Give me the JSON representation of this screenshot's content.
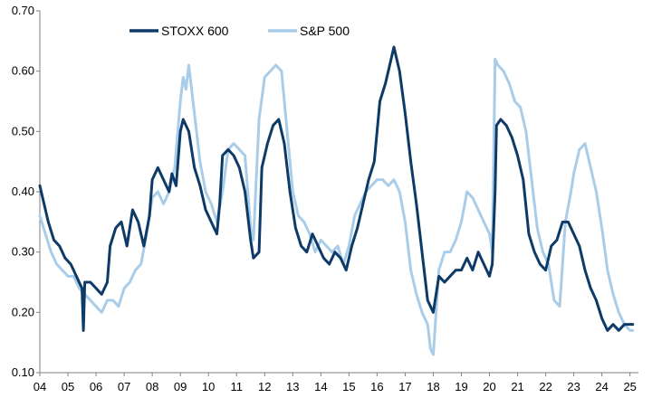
{
  "chart_data": {
    "type": "line",
    "title": "",
    "xlabel": "",
    "ylabel": "",
    "xlim": [
      2004.0,
      2025.3
    ],
    "ylim": [
      0.1,
      0.7
    ],
    "y_ticks": [
      "0.10",
      "0.20",
      "0.30",
      "0.40",
      "0.50",
      "0.60",
      "0.70"
    ],
    "x_ticks": [
      {
        "label": "04",
        "x": 2004
      },
      {
        "label": "05",
        "x": 2005
      },
      {
        "label": "06",
        "x": 2006
      },
      {
        "label": "07",
        "x": 2007
      },
      {
        "label": "08",
        "x": 2008
      },
      {
        "label": "09",
        "x": 2009
      },
      {
        "label": "10",
        "x": 2010
      },
      {
        "label": "11",
        "x": 2011
      },
      {
        "label": "12",
        "x": 2012
      },
      {
        "label": "13",
        "x": 2013
      },
      {
        "label": "14",
        "x": 2014
      },
      {
        "label": "15",
        "x": 2015
      },
      {
        "label": "16",
        "x": 2016
      },
      {
        "label": "17",
        "x": 2017
      },
      {
        "label": "18",
        "x": 2018
      },
      {
        "label": "19",
        "x": 2019
      },
      {
        "label": "20",
        "x": 2020
      },
      {
        "label": "21",
        "x": 2021
      },
      {
        "label": "22",
        "x": 2022
      },
      {
        "label": "23",
        "x": 2023
      },
      {
        "label": "24",
        "x": 2024
      },
      {
        "label": "25",
        "x": 2025
      }
    ],
    "grid": false,
    "legend_position": "top-left",
    "series": [
      {
        "name": "STOXX 600",
        "color": "#0d3a66",
        "x": [
          2004.0,
          2004.1,
          2004.3,
          2004.5,
          2004.7,
          2004.9,
          2005.1,
          2005.3,
          2005.5,
          2005.55,
          2005.6,
          2005.8,
          2006.0,
          2006.2,
          2006.4,
          2006.5,
          2006.7,
          2006.9,
          2007.1,
          2007.3,
          2007.5,
          2007.7,
          2007.9,
          2008.0,
          2008.2,
          2008.4,
          2008.6,
          2008.7,
          2008.85,
          2009.0,
          2009.1,
          2009.3,
          2009.5,
          2009.7,
          2009.9,
          2010.1,
          2010.3,
          2010.4,
          2010.5,
          2010.7,
          2010.9,
          2011.1,
          2011.3,
          2011.5,
          2011.6,
          2011.8,
          2011.9,
          2012.1,
          2012.3,
          2012.5,
          2012.7,
          2012.9,
          2013.1,
          2013.3,
          2013.5,
          2013.7,
          2013.9,
          2014.1,
          2014.3,
          2014.5,
          2014.7,
          2014.9,
          2015.1,
          2015.3,
          2015.5,
          2015.7,
          2015.9,
          2016.1,
          2016.3,
          2016.45,
          2016.6,
          2016.8,
          2017.0,
          2017.2,
          2017.4,
          2017.6,
          2017.8,
          2018.0,
          2018.2,
          2018.4,
          2018.6,
          2018.8,
          2019.0,
          2019.2,
          2019.4,
          2019.6,
          2019.8,
          2020.0,
          2020.1,
          2020.2,
          2020.25,
          2020.4,
          2020.6,
          2020.8,
          2021.0,
          2021.2,
          2021.4,
          2021.6,
          2021.8,
          2022.0,
          2022.2,
          2022.4,
          2022.6,
          2022.8,
          2023.0,
          2023.2,
          2023.4,
          2023.6,
          2023.8,
          2024.0,
          2024.2,
          2024.4,
          2024.6,
          2024.8,
          2025.0,
          2025.1
        ],
        "values": [
          0.41,
          0.39,
          0.35,
          0.32,
          0.31,
          0.29,
          0.28,
          0.26,
          0.24,
          0.17,
          0.25,
          0.25,
          0.24,
          0.23,
          0.25,
          0.31,
          0.34,
          0.35,
          0.31,
          0.37,
          0.35,
          0.31,
          0.36,
          0.42,
          0.44,
          0.42,
          0.4,
          0.43,
          0.41,
          0.5,
          0.52,
          0.5,
          0.44,
          0.41,
          0.37,
          0.35,
          0.33,
          0.38,
          0.46,
          0.47,
          0.46,
          0.44,
          0.4,
          0.32,
          0.29,
          0.3,
          0.44,
          0.48,
          0.51,
          0.52,
          0.48,
          0.4,
          0.34,
          0.31,
          0.3,
          0.33,
          0.31,
          0.29,
          0.28,
          0.3,
          0.29,
          0.27,
          0.31,
          0.34,
          0.38,
          0.42,
          0.45,
          0.55,
          0.58,
          0.61,
          0.64,
          0.6,
          0.53,
          0.45,
          0.38,
          0.3,
          0.22,
          0.2,
          0.26,
          0.25,
          0.26,
          0.27,
          0.27,
          0.29,
          0.27,
          0.3,
          0.28,
          0.26,
          0.28,
          0.4,
          0.51,
          0.52,
          0.51,
          0.49,
          0.46,
          0.42,
          0.33,
          0.3,
          0.28,
          0.27,
          0.31,
          0.32,
          0.35,
          0.35,
          0.33,
          0.31,
          0.27,
          0.24,
          0.22,
          0.19,
          0.17,
          0.18,
          0.17,
          0.18,
          0.18,
          0.18
        ]
      },
      {
        "name": "S&P 500",
        "color": "#a9cde8",
        "x": [
          2004.0,
          2004.2,
          2004.4,
          2004.6,
          2004.8,
          2005.0,
          2005.2,
          2005.4,
          2005.6,
          2005.8,
          2006.0,
          2006.2,
          2006.4,
          2006.6,
          2006.8,
          2007.0,
          2007.2,
          2007.4,
          2007.6,
          2007.8,
          2008.0,
          2008.2,
          2008.4,
          2008.6,
          2008.8,
          2009.0,
          2009.1,
          2009.2,
          2009.3,
          2009.5,
          2009.7,
          2009.9,
          2010.1,
          2010.3,
          2010.5,
          2010.7,
          2010.9,
          2011.1,
          2011.3,
          2011.5,
          2011.6,
          2011.8,
          2012.0,
          2012.2,
          2012.4,
          2012.6,
          2012.8,
          2013.0,
          2013.2,
          2013.4,
          2013.6,
          2013.8,
          2014.0,
          2014.2,
          2014.4,
          2014.6,
          2014.8,
          2015.0,
          2015.2,
          2015.4,
          2015.6,
          2015.8,
          2016.0,
          2016.2,
          2016.4,
          2016.6,
          2016.8,
          2017.0,
          2017.2,
          2017.4,
          2017.6,
          2017.8,
          2017.9,
          2018.0,
          2018.2,
          2018.4,
          2018.6,
          2018.8,
          2019.0,
          2019.2,
          2019.4,
          2019.6,
          2019.8,
          2020.0,
          2020.1,
          2020.2,
          2020.3,
          2020.5,
          2020.7,
          2020.9,
          2021.1,
          2021.3,
          2021.5,
          2021.7,
          2021.9,
          2022.1,
          2022.3,
          2022.5,
          2022.7,
          2022.9,
          2023.0,
          2023.2,
          2023.4,
          2023.6,
          2023.8,
          2024.0,
          2024.2,
          2024.4,
          2024.6,
          2024.8,
          2025.0,
          2025.1
        ],
        "values": [
          0.36,
          0.33,
          0.3,
          0.28,
          0.27,
          0.26,
          0.26,
          0.24,
          0.23,
          0.22,
          0.21,
          0.2,
          0.22,
          0.22,
          0.21,
          0.24,
          0.25,
          0.27,
          0.28,
          0.33,
          0.39,
          0.4,
          0.38,
          0.4,
          0.44,
          0.55,
          0.59,
          0.57,
          0.61,
          0.53,
          0.45,
          0.4,
          0.38,
          0.35,
          0.4,
          0.47,
          0.48,
          0.47,
          0.46,
          0.34,
          0.32,
          0.52,
          0.59,
          0.6,
          0.61,
          0.6,
          0.5,
          0.4,
          0.36,
          0.35,
          0.33,
          0.3,
          0.32,
          0.31,
          0.3,
          0.31,
          0.28,
          0.31,
          0.36,
          0.38,
          0.4,
          0.41,
          0.42,
          0.42,
          0.41,
          0.42,
          0.4,
          0.35,
          0.27,
          0.23,
          0.2,
          0.18,
          0.14,
          0.13,
          0.27,
          0.3,
          0.3,
          0.32,
          0.35,
          0.4,
          0.39,
          0.37,
          0.35,
          0.33,
          0.3,
          0.62,
          0.61,
          0.6,
          0.58,
          0.55,
          0.54,
          0.5,
          0.42,
          0.34,
          0.3,
          0.28,
          0.22,
          0.21,
          0.35,
          0.4,
          0.43,
          0.47,
          0.48,
          0.44,
          0.4,
          0.34,
          0.27,
          0.23,
          0.2,
          0.18,
          0.17,
          0.17
        ]
      }
    ]
  }
}
